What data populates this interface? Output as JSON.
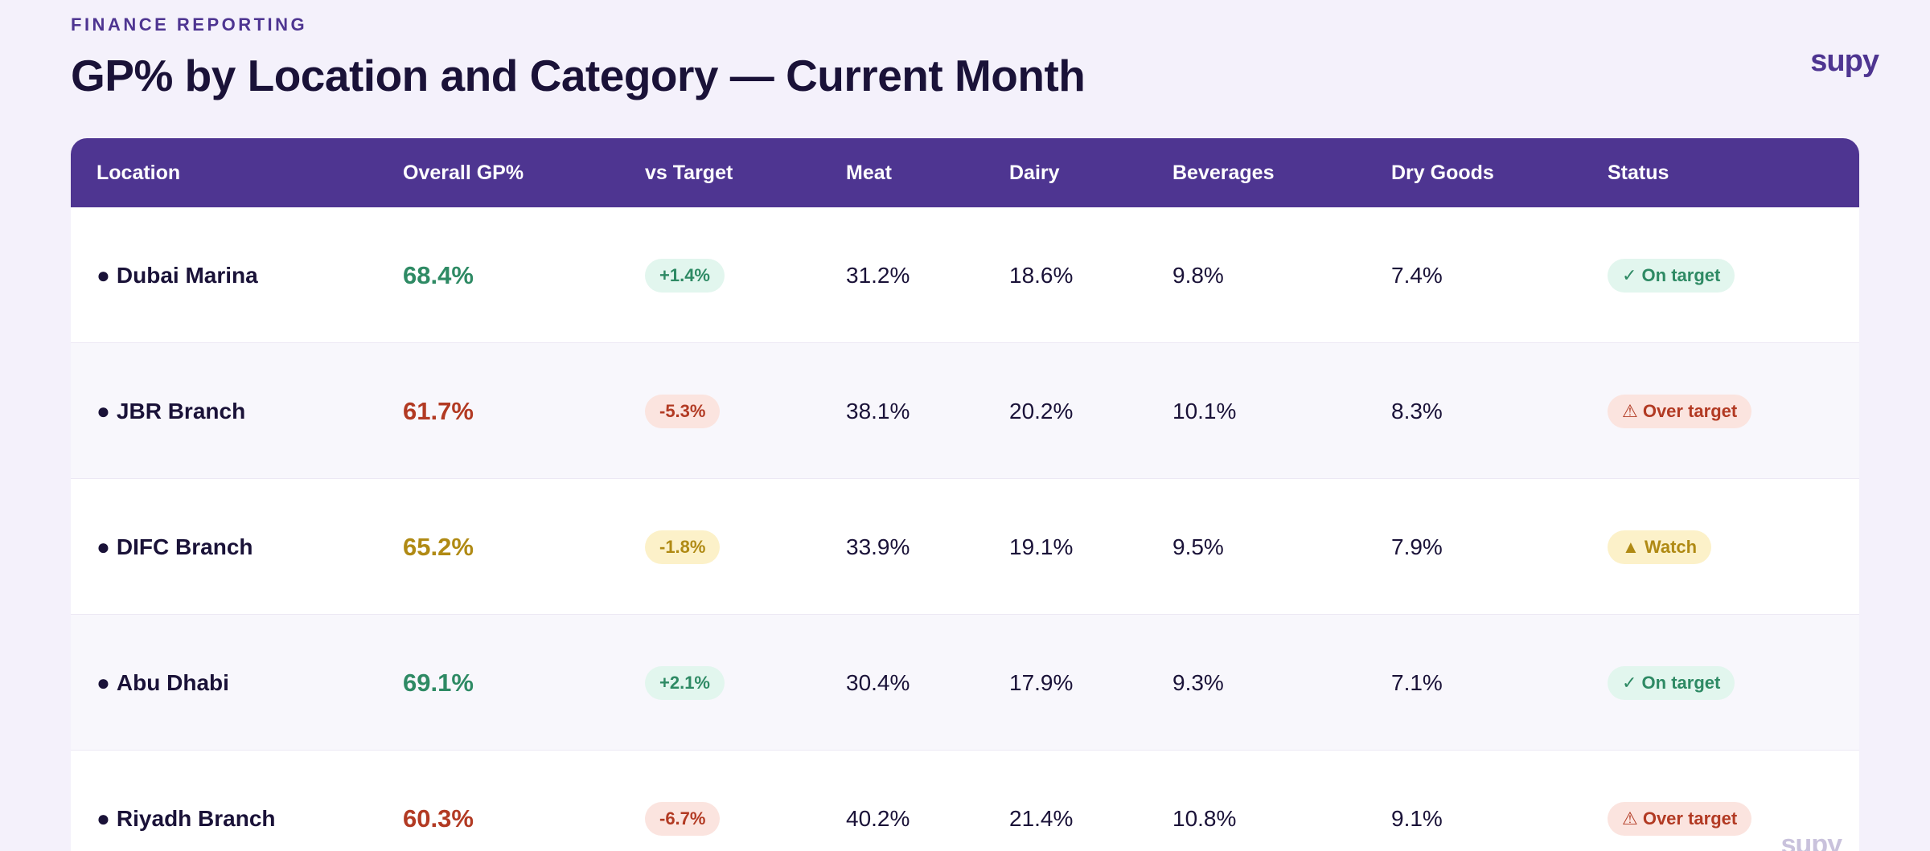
{
  "header": {
    "eyebrow": "FINANCE REPORTING",
    "title": "GP% by Location and Category — Current Month",
    "logo": "supy",
    "watermark": "supy"
  },
  "colors": {
    "brand": "#4e3591",
    "good": "#2e8a64",
    "bad": "#b23a23",
    "warn": "#b08a14"
  },
  "table": {
    "columns": [
      "Location",
      "Overall GP%",
      "vs Target",
      "Meat",
      "Dairy",
      "Beverages",
      "Dry Goods",
      "Status"
    ],
    "rows": [
      {
        "location": "Dubai Marina",
        "overall": "68.4%",
        "vs_target": "+1.4%",
        "meat": "31.2%",
        "dairy": "18.6%",
        "beverages": "9.8%",
        "dry_goods": "7.4%",
        "status": "✓ On target",
        "tone": "good"
      },
      {
        "location": "JBR Branch",
        "overall": "61.7%",
        "vs_target": "-5.3%",
        "meat": "38.1%",
        "dairy": "20.2%",
        "beverages": "10.1%",
        "dry_goods": "8.3%",
        "status": "⚠ Over target",
        "tone": "bad"
      },
      {
        "location": "DIFC Branch",
        "overall": "65.2%",
        "vs_target": "-1.8%",
        "meat": "33.9%",
        "dairy": "19.1%",
        "beverages": "9.5%",
        "dry_goods": "7.9%",
        "status": "▲ Watch",
        "tone": "warn"
      },
      {
        "location": "Abu Dhabi",
        "overall": "69.1%",
        "vs_target": "+2.1%",
        "meat": "30.4%",
        "dairy": "17.9%",
        "beverages": "9.3%",
        "dry_goods": "7.1%",
        "status": "✓ On target",
        "tone": "good"
      },
      {
        "location": "Riyadh Branch",
        "overall": "60.3%",
        "vs_target": "-6.7%",
        "meat": "40.2%",
        "dairy": "21.4%",
        "beverages": "10.8%",
        "dry_goods": "9.1%",
        "status": "⚠ Over target",
        "tone": "bad"
      }
    ]
  }
}
